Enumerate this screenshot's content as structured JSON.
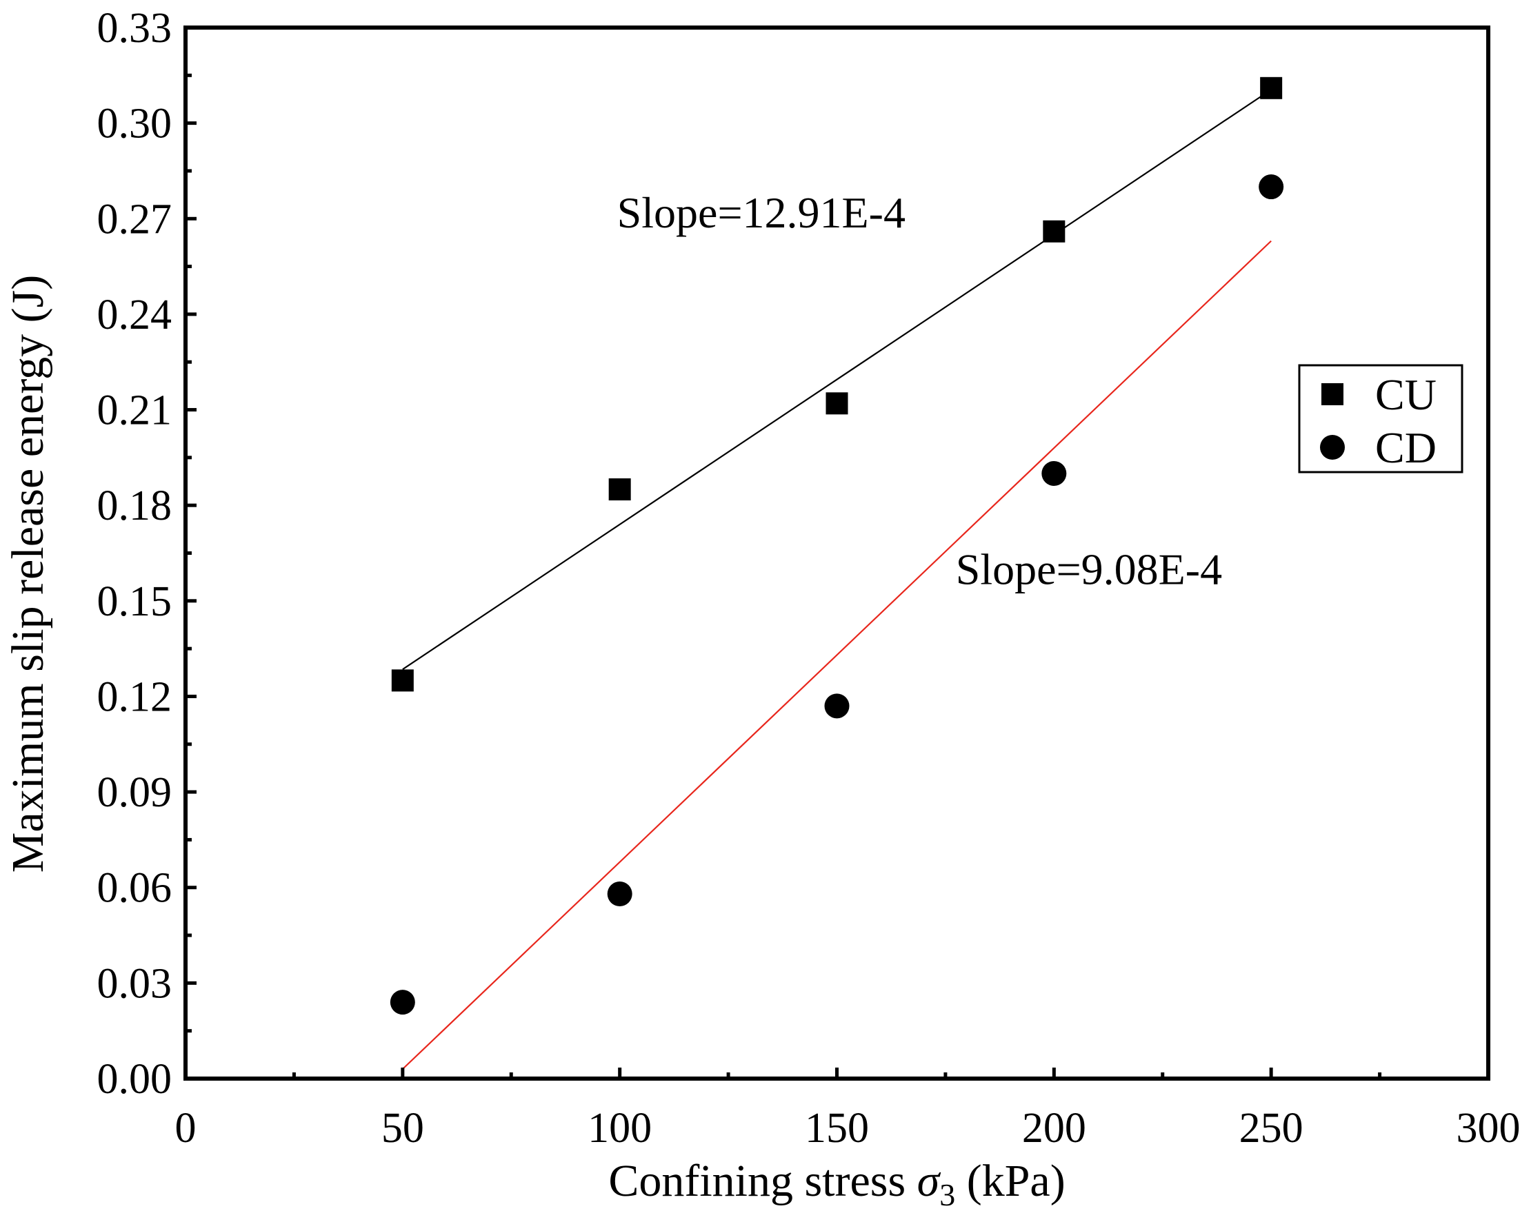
{
  "chart_data": {
    "type": "scatter",
    "xlabel": "Confining stress σ3 (kPa)",
    "xlabel_main": "Confining stress ",
    "xlabel_symbol": "σ",
    "xlabel_sub": "3",
    "xlabel_unit": " (kPa)",
    "ylabel": "Maximum slip release energy (J)",
    "xlim": [
      0,
      300
    ],
    "ylim": [
      0,
      0.33
    ],
    "xticks": [
      "0",
      "50",
      "100",
      "150",
      "200",
      "250",
      "300"
    ],
    "yticks": [
      "0.00",
      "0.03",
      "0.06",
      "0.09",
      "0.12",
      "0.15",
      "0.18",
      "0.21",
      "0.24",
      "0.27",
      "0.30",
      "0.33"
    ],
    "grid": false,
    "legend_position": "right",
    "series": [
      {
        "name": "CU",
        "marker": "square",
        "color": "#000000",
        "x": [
          50,
          100,
          150,
          200,
          250
        ],
        "y": [
          0.125,
          0.185,
          0.212,
          0.266,
          0.311
        ],
        "fit": {
          "x": [
            50,
            250
          ],
          "y": [
            0.1285,
            0.3105
          ],
          "color": "#000000"
        }
      },
      {
        "name": "CD",
        "marker": "circle",
        "color": "#000000",
        "x": [
          50,
          100,
          150,
          200,
          250
        ],
        "y": [
          0.024,
          0.058,
          0.117,
          0.19,
          0.28
        ],
        "fit": {
          "x": [
            50,
            250
          ],
          "y": [
            0.003,
            0.263
          ],
          "color": "#e8261c"
        }
      }
    ],
    "annotations": [
      {
        "text": "Slope=12.91E-4",
        "x": 100,
        "y": 0.272
      },
      {
        "text": "Slope=9.08E-4",
        "x": 178,
        "y": 0.16
      }
    ]
  }
}
